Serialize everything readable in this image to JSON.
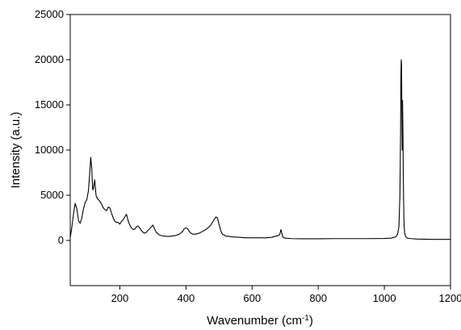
{
  "chart_data": {
    "type": "line",
    "title": "",
    "xlabel": {
      "main": "Wavenumber (cm",
      "superscript": "-1",
      "close": ")"
    },
    "ylabel": "Intensity (a.u.)",
    "xlim": [
      50,
      1200
    ],
    "ylim": [
      -5000,
      25000
    ],
    "xticks": [
      200,
      400,
      600,
      800,
      1000,
      1200
    ],
    "xtick_labels": [
      "200",
      "400",
      "600",
      "800",
      "1000",
      "1200"
    ],
    "yticks": [
      0,
      5000,
      10000,
      15000,
      20000,
      25000
    ],
    "ytick_labels": [
      "0",
      "5000",
      "10000",
      "15000",
      "20000",
      "25000"
    ],
    "grid": false,
    "legend": "none",
    "line_color": "#000000",
    "series": [
      {
        "x": [
          50,
          55,
          60,
          65,
          70,
          75,
          80,
          85,
          90,
          95,
          100,
          105,
          110,
          112,
          115,
          118,
          120,
          124,
          128,
          132,
          136,
          140,
          145,
          150,
          155,
          160,
          165,
          170,
          175,
          180,
          185,
          190,
          195,
          200,
          205,
          210,
          215,
          220,
          225,
          230,
          235,
          240,
          245,
          250,
          255,
          260,
          265,
          270,
          275,
          280,
          285,
          290,
          295,
          300,
          305,
          310,
          320,
          330,
          340,
          350,
          360,
          370,
          380,
          390,
          395,
          400,
          405,
          410,
          415,
          420,
          430,
          440,
          450,
          460,
          470,
          475,
          480,
          485,
          490,
          495,
          500,
          505,
          510,
          520,
          540,
          560,
          580,
          600,
          620,
          640,
          660,
          670,
          680,
          684,
          687,
          690,
          693,
          700,
          720,
          750,
          800,
          850,
          900,
          950,
          1000,
          1020,
          1035,
          1040,
          1044,
          1047,
          1049,
          1050,
          1051,
          1052,
          1053,
          1054,
          1055,
          1056,
          1057,
          1058,
          1059,
          1060,
          1062,
          1065,
          1070,
          1080,
          1100,
          1150,
          1200
        ],
        "y": [
          300,
          1500,
          3000,
          4100,
          3500,
          2200,
          1900,
          2500,
          3500,
          4200,
          4500,
          5500,
          8000,
          9200,
          8000,
          5600,
          5700,
          6700,
          5000,
          4600,
          4500,
          4300,
          4000,
          3600,
          3400,
          3300,
          3700,
          3600,
          3000,
          2500,
          2100,
          2000,
          2000,
          1800,
          2100,
          2300,
          2600,
          2900,
          2200,
          1700,
          1400,
          1200,
          1250,
          1500,
          1600,
          1400,
          1100,
          900,
          800,
          900,
          1100,
          1300,
          1500,
          1700,
          1300,
          900,
          600,
          500,
          450,
          450,
          500,
          550,
          700,
          1000,
          1300,
          1400,
          1300,
          1000,
          800,
          700,
          700,
          800,
          1000,
          1200,
          1500,
          1700,
          2000,
          2300,
          2600,
          2500,
          1800,
          1100,
          700,
          500,
          400,
          350,
          300,
          300,
          300,
          280,
          350,
          450,
          550,
          700,
          1200,
          800,
          350,
          250,
          200,
          180,
          180,
          200,
          200,
          200,
          220,
          250,
          400,
          700,
          1500,
          5000,
          12000,
          18000,
          20000,
          19500,
          14000,
          10000,
          15500,
          12500,
          8000,
          5000,
          2500,
          1400,
          700,
          400,
          250,
          200,
          150,
          120,
          120
        ]
      }
    ]
  }
}
